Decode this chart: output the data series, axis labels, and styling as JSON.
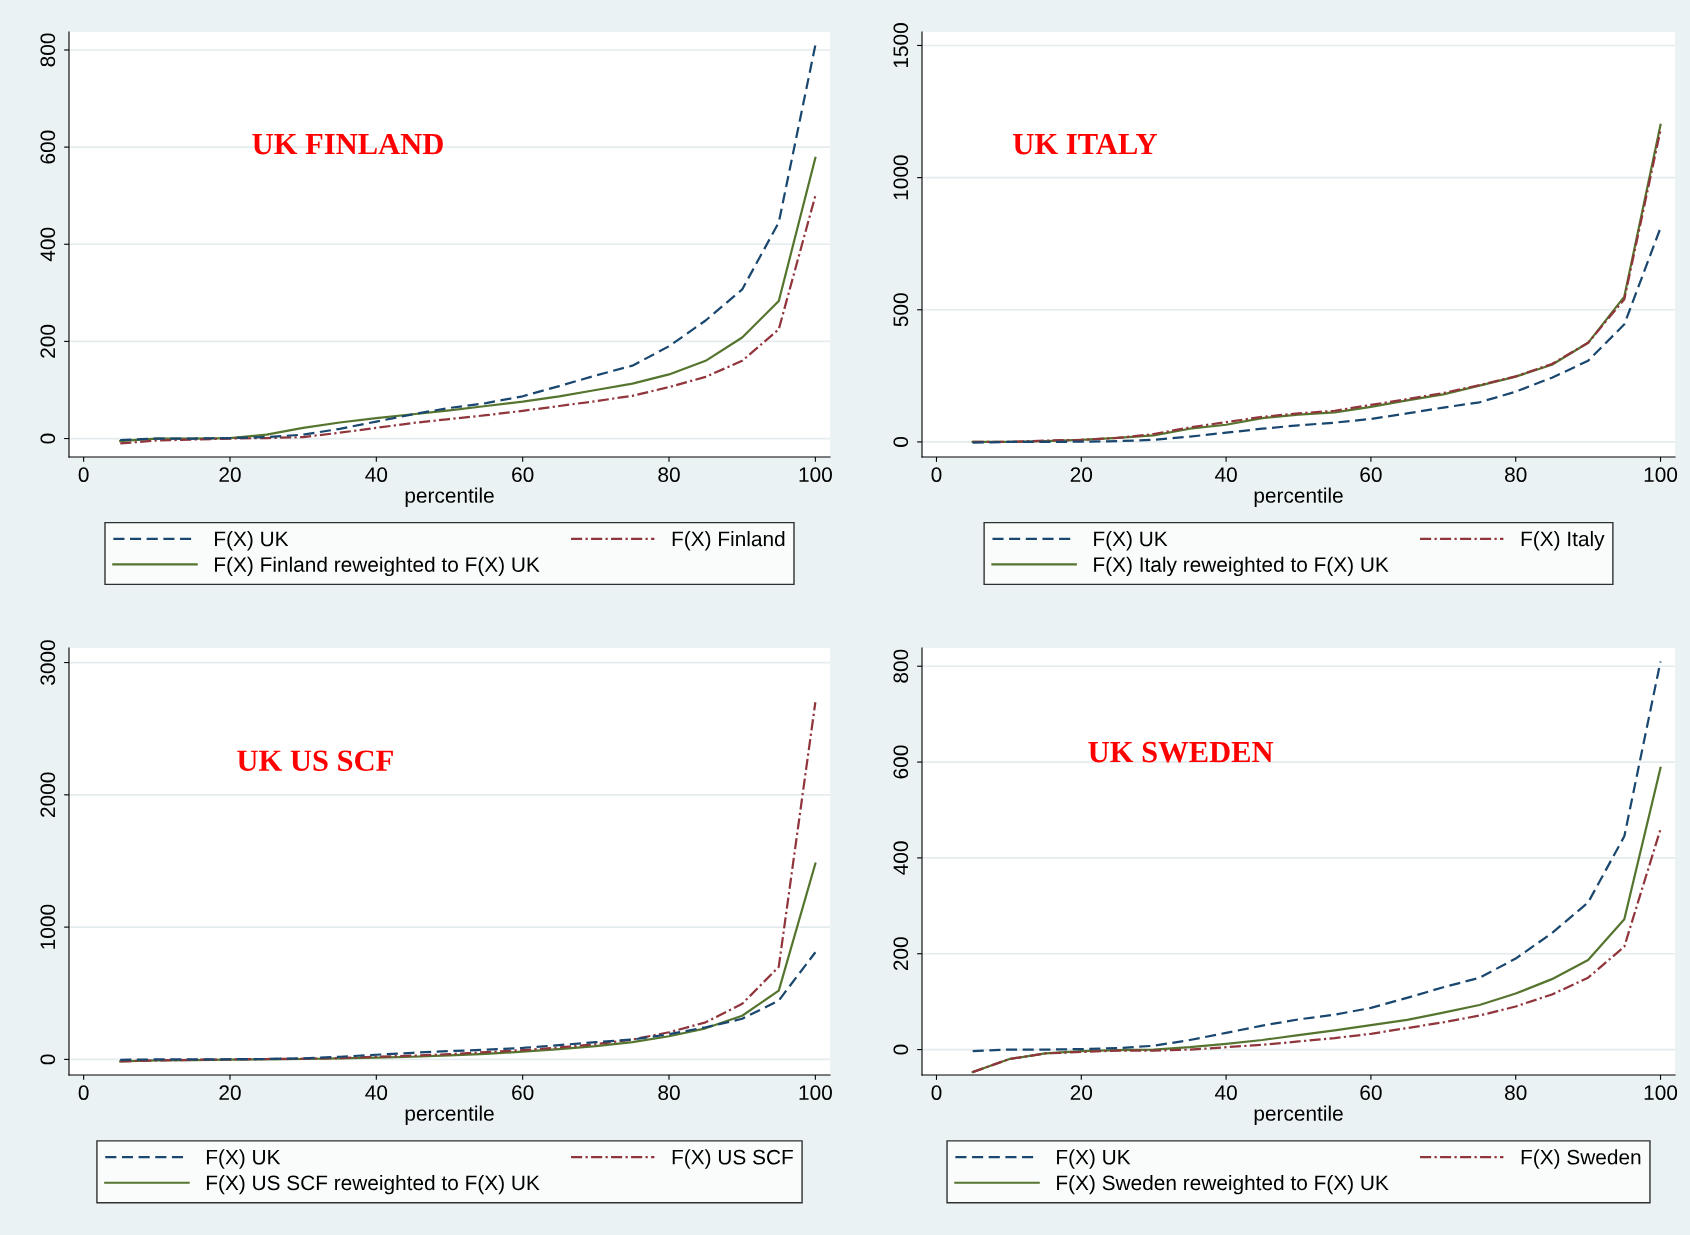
{
  "chart_data": [
    {
      "type": "line",
      "annotations": [
        "UK FINLAND"
      ],
      "xlabel": "percentile",
      "x": [
        5,
        10,
        15,
        20,
        25,
        30,
        35,
        40,
        45,
        50,
        55,
        60,
        65,
        70,
        75,
        80,
        85,
        90,
        95,
        100
      ],
      "xlim": [
        -2,
        102
      ],
      "xticks": [
        0,
        20,
        40,
        60,
        80,
        100
      ],
      "ylim": [
        -38,
        837
      ],
      "yticks": [
        0,
        200,
        400,
        600,
        800
      ],
      "grid": "y",
      "legend": "bottom",
      "series": [
        {
          "name": "F(X) UK",
          "color": "#1a476f",
          "line_style": "dashed",
          "values": [
            -3,
            0,
            0,
            1,
            3,
            8,
            20,
            35,
            50,
            63,
            73,
            87,
            108,
            130,
            150,
            190,
            243,
            307,
            445,
            810
          ]
        },
        {
          "name": "F(X) Finland",
          "color": "#90353b",
          "line_style": "dashdot",
          "values": [
            -10,
            -4,
            -2,
            0,
            1,
            3,
            12,
            22,
            32,
            40,
            48,
            57,
            67,
            77,
            88,
            106,
            127,
            160,
            225,
            500
          ]
        },
        {
          "name": "F(X) Finland reweighted to F(X) UK",
          "color": "#55752f",
          "line_style": "solid",
          "values": [
            -5,
            0,
            0,
            1,
            8,
            22,
            33,
            42,
            50,
            58,
            67,
            76,
            87,
            100,
            113,
            132,
            160,
            208,
            283,
            578
          ]
        }
      ]
    },
    {
      "type": "line",
      "annotations": [
        "UK ITALY"
      ],
      "xlabel": "percentile",
      "x": [
        5,
        10,
        15,
        20,
        25,
        30,
        35,
        40,
        45,
        50,
        55,
        60,
        65,
        70,
        75,
        80,
        85,
        90,
        95,
        100
      ],
      "xlim": [
        -2,
        102
      ],
      "xticks": [
        0,
        20,
        40,
        60,
        80,
        100
      ],
      "ylim": [
        -57,
        1551
      ],
      "yticks": [
        0,
        500,
        1000,
        1500
      ],
      "grid": "y",
      "legend": "bottom",
      "series": [
        {
          "name": "F(X) UK",
          "color": "#1a476f",
          "line_style": "dashed",
          "values": [
            -3,
            0,
            0,
            1,
            3,
            8,
            20,
            35,
            50,
            63,
            73,
            87,
            108,
            130,
            150,
            190,
            243,
            307,
            445,
            810
          ]
        },
        {
          "name": "F(X) Italy",
          "color": "#90353b",
          "line_style": "dashdot",
          "values": [
            0,
            0,
            5,
            8,
            15,
            30,
            55,
            75,
            95,
            108,
            118,
            140,
            162,
            185,
            215,
            248,
            295,
            375,
            540,
            1180
          ]
        },
        {
          "name": "F(X) Italy reweighted to F(X) UK",
          "color": "#55752f",
          "line_style": "solid",
          "values": [
            0,
            0,
            3,
            8,
            15,
            25,
            50,
            65,
            90,
            103,
            112,
            133,
            157,
            180,
            213,
            247,
            292,
            375,
            550,
            1200
          ]
        }
      ]
    },
    {
      "type": "line",
      "annotations": [
        "UK US SCF"
      ],
      "xlabel": "percentile",
      "x": [
        5,
        10,
        15,
        20,
        25,
        30,
        35,
        40,
        45,
        50,
        55,
        60,
        65,
        70,
        75,
        80,
        85,
        90,
        95,
        100
      ],
      "xlim": [
        -2,
        102
      ],
      "xticks": [
        0,
        20,
        40,
        60,
        80,
        100
      ],
      "ylim": [
        -118,
        3110
      ],
      "yticks": [
        0,
        1000,
        2000,
        3000
      ],
      "grid": "y",
      "legend": "bottom",
      "series": [
        {
          "name": "F(X) UK",
          "color": "#1a476f",
          "line_style": "dashed",
          "values": [
            -3,
            0,
            0,
            1,
            3,
            8,
            20,
            35,
            50,
            63,
            73,
            87,
            108,
            130,
            150,
            190,
            243,
            307,
            445,
            810
          ]
        },
        {
          "name": "F(X) US SCF",
          "color": "#90353b",
          "line_style": "dashdot",
          "values": [
            -15,
            -8,
            -3,
            0,
            3,
            5,
            10,
            20,
            28,
            40,
            55,
            70,
            90,
            115,
            150,
            205,
            280,
            420,
            700,
            2700
          ]
        },
        {
          "name": "F(X) US SCF reweighted to F(X) UK",
          "color": "#55752f",
          "line_style": "solid",
          "values": [
            -15,
            -8,
            -5,
            -2,
            0,
            3,
            7,
            13,
            20,
            30,
            42,
            58,
            78,
            100,
            130,
            175,
            235,
            330,
            520,
            1480
          ]
        }
      ]
    },
    {
      "type": "line",
      "annotations": [
        "UK SWEDEN"
      ],
      "xlabel": "percentile",
      "x": [
        5,
        10,
        15,
        20,
        25,
        30,
        35,
        40,
        45,
        50,
        55,
        60,
        65,
        70,
        75,
        80,
        85,
        90,
        95,
        100
      ],
      "xlim": [
        -2,
        102
      ],
      "xticks": [
        0,
        20,
        40,
        60,
        80,
        100
      ],
      "ylim": [
        -53,
        838
      ],
      "yticks": [
        0,
        200,
        400,
        600,
        800
      ],
      "grid": "y",
      "legend": "bottom",
      "series": [
        {
          "name": "F(X) UK",
          "color": "#1a476f",
          "line_style": "dashed",
          "values": [
            -3,
            0,
            0,
            1,
            3,
            8,
            20,
            35,
            50,
            63,
            73,
            87,
            108,
            130,
            150,
            190,
            243,
            307,
            445,
            810
          ]
        },
        {
          "name": "F(X) Sweden",
          "color": "#90353b",
          "line_style": "dashdot",
          "values": [
            -47,
            -20,
            -8,
            -5,
            -2,
            -2,
            0,
            5,
            10,
            17,
            24,
            33,
            45,
            57,
            71,
            90,
            115,
            150,
            215,
            460
          ]
        },
        {
          "name": "F(X) Sweden reweighted to F(X) UK",
          "color": "#55752f",
          "line_style": "solid",
          "values": [
            -47,
            -20,
            -8,
            -3,
            -1,
            0,
            5,
            12,
            20,
            30,
            40,
            51,
            62,
            77,
            93,
            117,
            147,
            187,
            272,
            588
          ]
        }
      ]
    }
  ]
}
